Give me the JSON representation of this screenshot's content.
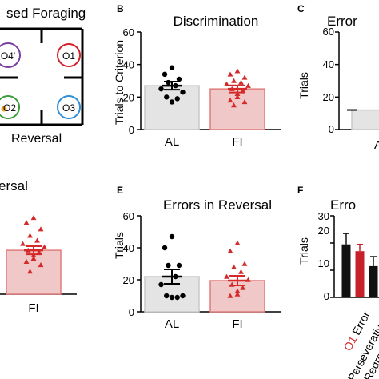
{
  "panels": {
    "A": {
      "title_fragment": "sed Foraging",
      "bottom_label": "Reversal",
      "odor_labels": [
        "O4'",
        "O1",
        "O2",
        "O3"
      ],
      "colors": {
        "o4": "#7b3fa0",
        "o1": "#d4202a",
        "o2": "#3a9d3a",
        "o2_dot": "#e8a020",
        "o3": "#2f8fd8"
      }
    },
    "B": {
      "letter": "B"
    },
    "C": {
      "letter": "C",
      "title_fragment": "Error",
      "tick_labels": [
        "60",
        "40",
        "20",
        "0"
      ],
      "ylabel": "Trials",
      "x_fragment": "A"
    },
    "D": {
      "title_fragment": "ersal",
      "x_label": "FI"
    },
    "E": {
      "letter": "E"
    },
    "F": {
      "letter": "F",
      "title_fragment": "Erro",
      "tick_labels": [
        "30",
        "20",
        "10",
        "0"
      ],
      "ylabel": "Trials",
      "xlabels": [
        {
          "red": "O1",
          "black": "Error"
        },
        {
          "black": "Perseverative",
          "red": "O"
        },
        {
          "black": "Regre"
        }
      ]
    }
  },
  "colors": {
    "al_bar": "#e4e4e4",
    "al_edge": "#c8c8c8",
    "fi_bar": "#f0c8c8",
    "fi_edge": "#e07c7c",
    "fi_point": "#d42a2a",
    "al_point": "#000000"
  },
  "chart_data": [
    {
      "panel": "B",
      "type": "bar",
      "title": "Discrimination",
      "ylabel": "Trials to Criterion",
      "ylim": [
        0,
        60
      ],
      "yticks": [
        0,
        20,
        40,
        60
      ],
      "categories": [
        "AL",
        "FI"
      ],
      "values": [
        27,
        25
      ],
      "sem": [
        2.5,
        2.2
      ],
      "points": [
        [
          38,
          34,
          31,
          29,
          27,
          25,
          23,
          20,
          19,
          17
        ],
        [
          36,
          34,
          32,
          30,
          29,
          28,
          27,
          25,
          24,
          22,
          20,
          18,
          17,
          15
        ]
      ]
    },
    {
      "panel": "E",
      "type": "bar",
      "title": "Errors in Reversal",
      "ylabel": "Trials",
      "ylim": [
        0,
        60
      ],
      "yticks": [
        0,
        20,
        40,
        60
      ],
      "categories": [
        "AL",
        "FI"
      ],
      "values": [
        22,
        19.5
      ],
      "sem": [
        4.5,
        3
      ],
      "points": [
        [
          47,
          40,
          29,
          29,
          22,
          17,
          10,
          10,
          9,
          9
        ],
        [
          43,
          38,
          30,
          28,
          25,
          22,
          20,
          17,
          15,
          13,
          11,
          10
        ]
      ]
    },
    {
      "panel": "D",
      "type": "bar",
      "categories": [
        "FI"
      ],
      "values": [
        27
      ],
      "sem": [
        2.5
      ],
      "ylim": [
        0,
        60
      ],
      "points": [
        [
          47,
          44,
          40,
          36,
          33,
          31,
          29,
          27,
          26,
          24,
          22,
          20,
          18,
          14
        ]
      ]
    },
    {
      "panel": "C",
      "type": "bar",
      "ylim": [
        0,
        60
      ],
      "values": [
        12
      ],
      "sem": [
        2
      ]
    },
    {
      "panel": "F",
      "type": "bar",
      "ylim": [
        0,
        30
      ],
      "groups": [
        "O1 Error",
        "Perseverative",
        "Regre"
      ],
      "series": [
        {
          "values": [
            19.5,
            null,
            11.5
          ],
          "sem": [
            4,
            null,
            3.5
          ]
        },
        {
          "values": [
            17,
            null,
            null
          ],
          "sem": [
            2.5,
            null,
            null
          ]
        }
      ]
    }
  ]
}
